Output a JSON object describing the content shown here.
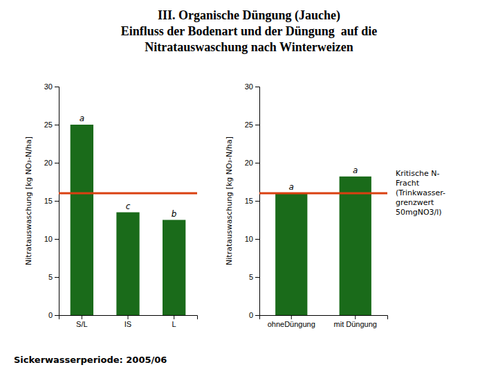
{
  "title": "III. Organische Düngung (Jauche)\nEinfluss der Bodenart und der Düngung  auf die\nNitratauswaschung nach Winterweizen",
  "footer": "Sickerwasserperiode: 2005/06",
  "chart_data": [
    {
      "type": "bar",
      "categories": [
        "S/L",
        "IS",
        "L"
      ],
      "values": [
        25.0,
        13.5,
        12.5
      ],
      "annotations": [
        "a",
        "c",
        "b"
      ],
      "color": "#1a6b1a",
      "ylabel": "Nitratauswaschung [kg NO₃-N/ha]",
      "ylim": [
        0,
        30
      ],
      "yticks": [
        0,
        5,
        10,
        15,
        20,
        25,
        30
      ],
      "ref_line": {
        "value": 16.0,
        "color": "#d94010"
      }
    },
    {
      "type": "bar",
      "categories": [
        "ohneDüngung",
        "mit Düngung"
      ],
      "values": [
        16.0,
        18.2
      ],
      "annotations": [
        "a",
        "a"
      ],
      "color": "#1a6b1a",
      "ylabel": "Nitratauswaschung [kg NO₃-N/ha]",
      "ylim": [
        0,
        30
      ],
      "yticks": [
        0,
        5,
        10,
        15,
        20,
        25,
        30
      ],
      "ref_line": {
        "value": 16.0,
        "color": "#d94010",
        "label": "Kritische N-\nFracht\n(Trinkwasser-\ngrenzwert\n50mgNO3/l)"
      }
    }
  ]
}
